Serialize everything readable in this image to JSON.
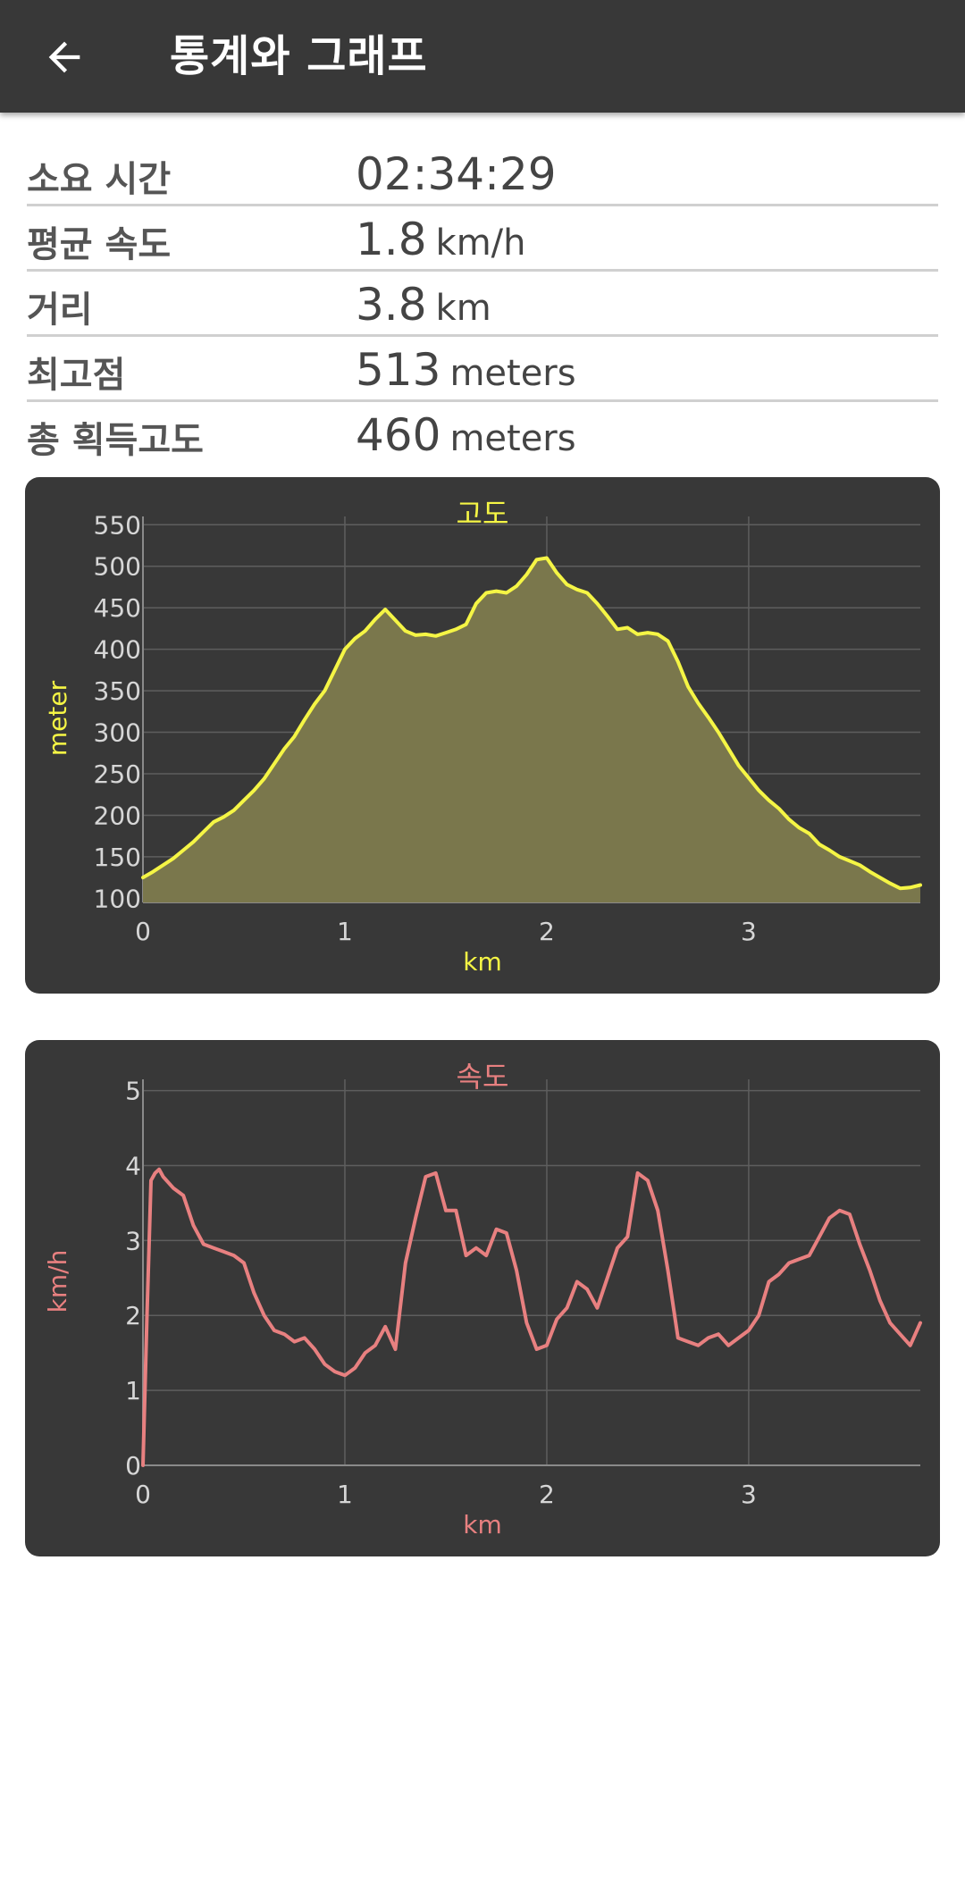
{
  "appbar": {
    "title": "통계와 그래프",
    "back_icon": "arrow-left-icon"
  },
  "stats": [
    {
      "label": "소요 시간",
      "value": "02:34:29",
      "unit": ""
    },
    {
      "label": "평균 속도",
      "value": "1.8",
      "unit": "km/h"
    },
    {
      "label": "거리",
      "value": "3.8",
      "unit": "km"
    },
    {
      "label": "최고점",
      "value": "513",
      "unit": "meters"
    },
    {
      "label": "총 획득고도",
      "value": "460",
      "unit": "meters"
    }
  ],
  "chart_data": [
    {
      "type": "area",
      "title": "고도",
      "xlabel": "km",
      "ylabel": "meter",
      "color": "#f5f545",
      "fill": "#7a774c",
      "xlim": [
        0,
        3.85
      ],
      "ylim": [
        95,
        560
      ],
      "xticks": [
        0,
        1,
        2,
        3
      ],
      "yticks": [
        100,
        150,
        200,
        250,
        300,
        350,
        400,
        450,
        500,
        550
      ],
      "grid": true,
      "x": [
        0,
        0.05,
        0.1,
        0.15,
        0.2,
        0.25,
        0.3,
        0.35,
        0.4,
        0.45,
        0.5,
        0.55,
        0.6,
        0.65,
        0.7,
        0.75,
        0.8,
        0.85,
        0.9,
        0.95,
        1.0,
        1.05,
        1.1,
        1.15,
        1.2,
        1.25,
        1.3,
        1.35,
        1.4,
        1.45,
        1.5,
        1.55,
        1.6,
        1.65,
        1.7,
        1.75,
        1.8,
        1.85,
        1.9,
        1.95,
        2.0,
        2.05,
        2.1,
        2.15,
        2.2,
        2.25,
        2.3,
        2.35,
        2.4,
        2.45,
        2.5,
        2.55,
        2.6,
        2.65,
        2.7,
        2.75,
        2.8,
        2.85,
        2.9,
        2.95,
        3.0,
        3.05,
        3.1,
        3.15,
        3.2,
        3.25,
        3.3,
        3.35,
        3.4,
        3.45,
        3.5,
        3.55,
        3.6,
        3.65,
        3.7,
        3.75,
        3.8,
        3.85
      ],
      "y": [
        125,
        132,
        140,
        148,
        158,
        168,
        180,
        192,
        198,
        206,
        218,
        230,
        244,
        262,
        280,
        295,
        315,
        334,
        350,
        375,
        400,
        413,
        422,
        436,
        448,
        435,
        422,
        417,
        418,
        416,
        420,
        424,
        430,
        455,
        468,
        470,
        468,
        476,
        490,
        508,
        510,
        492,
        478,
        472,
        468,
        455,
        440,
        424,
        426,
        418,
        420,
        418,
        410,
        385,
        355,
        335,
        318,
        300,
        280,
        260,
        245,
        230,
        218,
        208,
        195,
        185,
        178,
        165,
        158,
        150,
        145,
        140,
        132,
        125,
        118,
        112,
        113,
        116
      ]
    },
    {
      "type": "line",
      "title": "속도",
      "xlabel": "km",
      "ylabel": "km/h",
      "color": "#e88080",
      "xlim": [
        0,
        3.85
      ],
      "ylim": [
        0,
        5.15
      ],
      "xticks": [
        0,
        1,
        2,
        3
      ],
      "yticks": [
        0,
        1,
        2,
        3,
        4,
        5
      ],
      "grid": true,
      "x": [
        0,
        0.02,
        0.04,
        0.06,
        0.08,
        0.1,
        0.15,
        0.2,
        0.25,
        0.3,
        0.35,
        0.4,
        0.45,
        0.5,
        0.55,
        0.6,
        0.65,
        0.7,
        0.75,
        0.8,
        0.85,
        0.9,
        0.95,
        1.0,
        1.05,
        1.1,
        1.15,
        1.2,
        1.25,
        1.3,
        1.35,
        1.4,
        1.45,
        1.5,
        1.55,
        1.6,
        1.65,
        1.7,
        1.75,
        1.8,
        1.85,
        1.9,
        1.95,
        2.0,
        2.05,
        2.1,
        2.15,
        2.2,
        2.25,
        2.3,
        2.35,
        2.4,
        2.45,
        2.5,
        2.55,
        2.6,
        2.65,
        2.7,
        2.75,
        2.8,
        2.85,
        2.9,
        2.95,
        3.0,
        3.05,
        3.1,
        3.15,
        3.2,
        3.25,
        3.3,
        3.35,
        3.4,
        3.45,
        3.5,
        3.55,
        3.6,
        3.65,
        3.7,
        3.75,
        3.8,
        3.85
      ],
      "y": [
        0.0,
        2.0,
        3.8,
        3.9,
        3.95,
        3.85,
        3.7,
        3.6,
        3.2,
        2.95,
        2.9,
        2.85,
        2.8,
        2.7,
        2.3,
        2.0,
        1.8,
        1.75,
        1.65,
        1.7,
        1.55,
        1.35,
        1.25,
        1.2,
        1.3,
        1.5,
        1.6,
        1.85,
        1.55,
        2.7,
        3.3,
        3.85,
        3.9,
        3.4,
        3.4,
        2.8,
        2.9,
        2.8,
        3.15,
        3.1,
        2.6,
        1.9,
        1.55,
        1.6,
        1.95,
        2.1,
        2.45,
        2.35,
        2.1,
        2.5,
        2.9,
        3.05,
        3.9,
        3.8,
        3.4,
        2.6,
        1.7,
        1.65,
        1.6,
        1.7,
        1.75,
        1.6,
        1.7,
        1.8,
        2.0,
        2.45,
        2.55,
        2.7,
        2.75,
        2.8,
        3.05,
        3.3,
        3.4,
        3.35,
        2.95,
        2.6,
        2.2,
        1.9,
        1.75,
        1.6,
        1.9
      ]
    }
  ]
}
